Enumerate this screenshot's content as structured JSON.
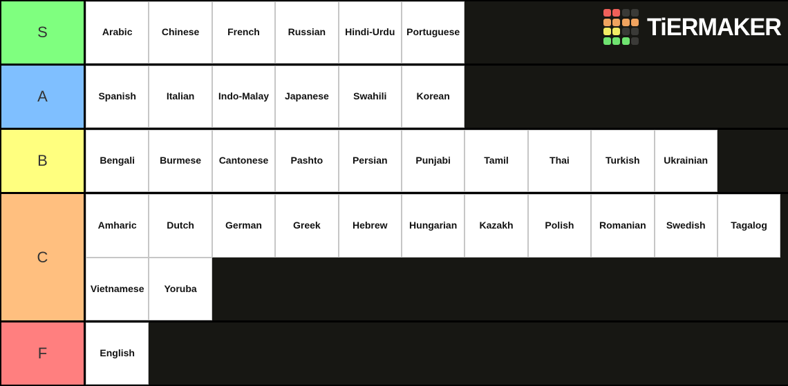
{
  "logo": {
    "wordmark": "TiERMAKER",
    "palette": {
      "red": "#f0605a",
      "orange": "#f0a35f",
      "yellow": "#f2ec65",
      "green": "#6fe370",
      "dark": "#3a3a37"
    },
    "grid": [
      [
        "red",
        "red",
        "dark",
        "dark"
      ],
      [
        "orange",
        "orange",
        "orange",
        "orange"
      ],
      [
        "yellow",
        "yellow",
        "dark",
        "dark"
      ],
      [
        "green",
        "green",
        "green",
        "dark"
      ]
    ]
  },
  "tiers": [
    {
      "label": "S",
      "color": "#7FFF7F",
      "items": [
        "Arabic",
        "Chinese",
        "French",
        "Russian",
        "Hindi-Urdu",
        "Portuguese"
      ]
    },
    {
      "label": "A",
      "color": "#7FBFFF",
      "items": [
        "Spanish",
        "Italian",
        "Indo-Malay",
        "Japanese",
        "Swahili",
        "Korean"
      ]
    },
    {
      "label": "B",
      "color": "#FFFF7F",
      "items": [
        "Bengali",
        "Burmese",
        "Cantonese",
        "Pashto",
        "Persian",
        "Punjabi",
        "Tamil",
        "Thai",
        "Turkish",
        "Ukrainian"
      ]
    },
    {
      "label": "C",
      "color": "#FFBF7F",
      "items": [
        "Amharic",
        "Dutch",
        "German",
        "Greek",
        "Hebrew",
        "Hungarian",
        "Kazakh",
        "Polish",
        "Romanian",
        "Swedish",
        "Tagalog",
        "Vietnamese",
        "Yoruba"
      ]
    },
    {
      "label": "F",
      "color": "#FF7F7F",
      "items": [
        "English"
      ]
    }
  ]
}
